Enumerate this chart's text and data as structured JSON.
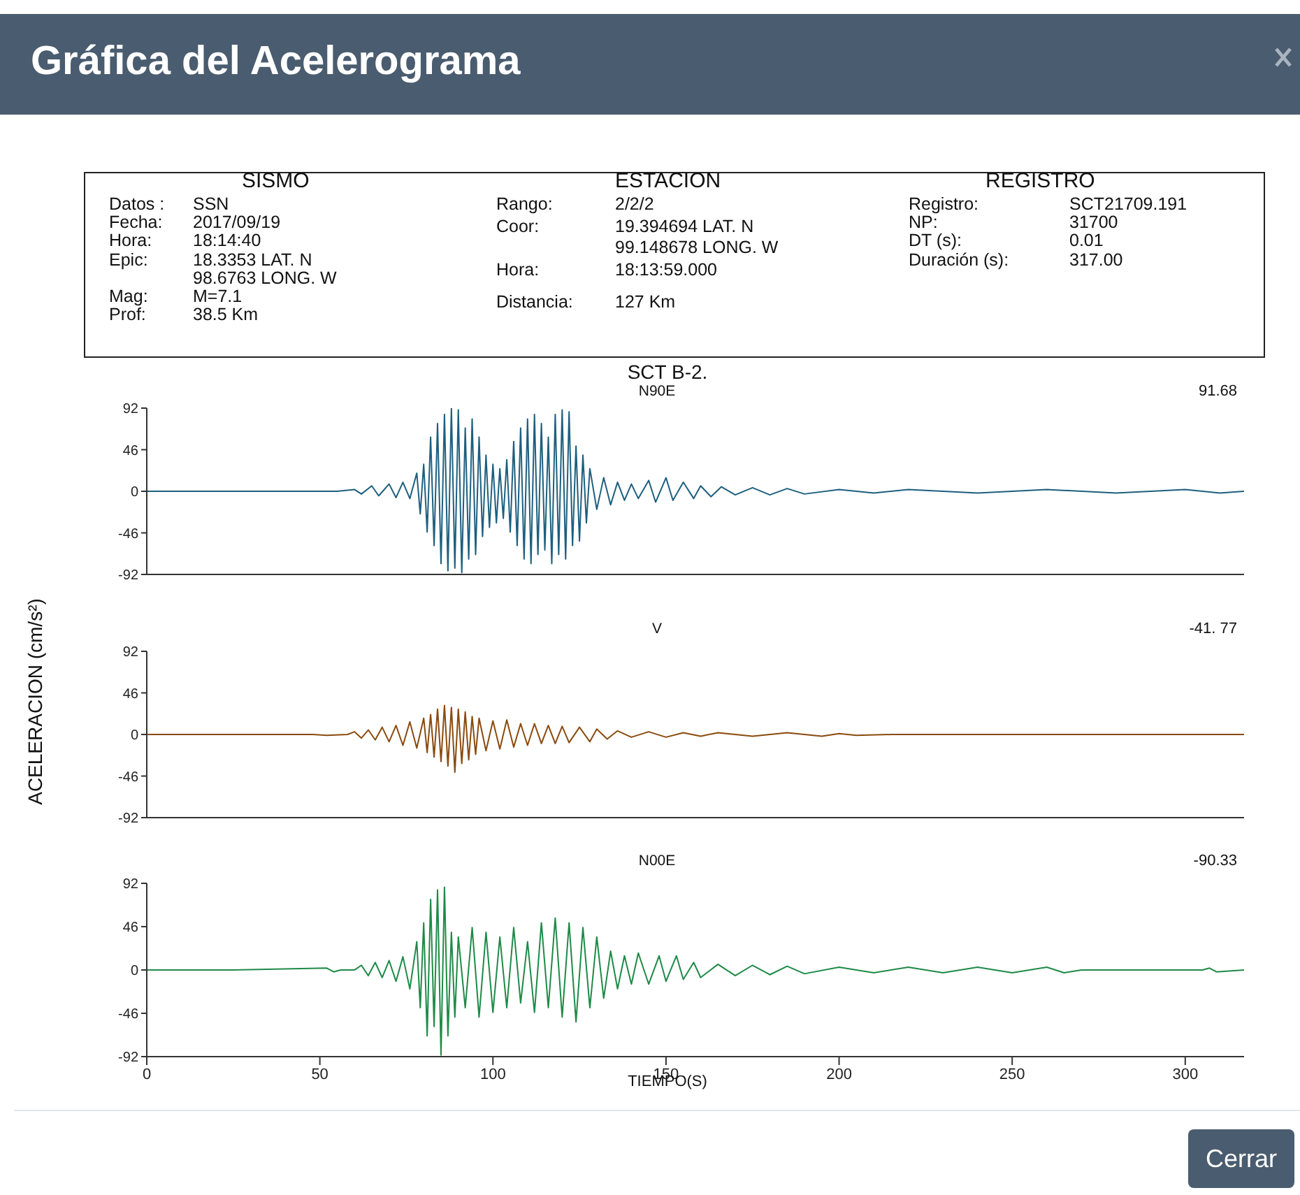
{
  "chart_data": [
    {
      "type": "other",
      "title": "Gráfica del Acelerograma",
      "annotations": [
        "SISMO",
        "Datos :",
        "SSN",
        "Fecha:",
        "2017/09/19",
        "Hora:",
        "18:14:40",
        "Epic:",
        "18.3353  LAT. N",
        "98.6763  LONG. W",
        "Mag:",
        "M=7.1",
        "Prof:",
        "38.5 Km",
        "ESTACION",
        "Rango:",
        "2/2/2",
        "Coor:",
        "19.394694  LAT. N",
        "99.148678  LONG. W",
        "Hora:",
        "18:13:59.000",
        "Distancia:",
        "127 Km",
        "REGISTRO",
        "Registro:",
        "SCT21709.191",
        "NP:",
        "31700",
        "DT (s):",
        "0.01",
        "Duración (s):",
        "317.00",
        "Cerrar"
      ]
    },
    {
      "type": "line",
      "title": "SCT B-2.",
      "subtitle": "N90E",
      "annotations": [
        "91.68"
      ],
      "xlim": [
        0,
        317
      ],
      "ylim": [
        -92,
        92
      ],
      "yticks": [
        -92,
        -46,
        0,
        46,
        92
      ],
      "tick_labels": "y",
      "series": [
        {
          "color": "#1d5f7e",
          "x": [
            0,
            50,
            55,
            60,
            62,
            65,
            67,
            70,
            72,
            74,
            76,
            78,
            79,
            80,
            81,
            82,
            83,
            84,
            85,
            86,
            87,
            88,
            89,
            90,
            91,
            92,
            93,
            94,
            95,
            96,
            97,
            98,
            99,
            100,
            101,
            102,
            103,
            104,
            105,
            106,
            107,
            108,
            109,
            110,
            111,
            112,
            113,
            114,
            115,
            116,
            117,
            118,
            119,
            120,
            121,
            122,
            123,
            124,
            125,
            126,
            127,
            128,
            130,
            132,
            134,
            136,
            138,
            140,
            142,
            145,
            147,
            150,
            152,
            155,
            158,
            160,
            163,
            166,
            170,
            175,
            180,
            185,
            190,
            200,
            210,
            220,
            240,
            260,
            280,
            300,
            310,
            317
          ],
          "values": [
            0,
            0,
            0,
            2,
            -3,
            6,
            -5,
            8,
            -7,
            10,
            -8,
            20,
            -25,
            30,
            -45,
            60,
            -60,
            75,
            -80,
            85,
            -88,
            91.68,
            -85,
            90,
            -90,
            70,
            -75,
            80,
            -70,
            60,
            -50,
            40,
            -40,
            30,
            -35,
            25,
            -30,
            35,
            -45,
            55,
            -60,
            70,
            -75,
            80,
            -80,
            85,
            -70,
            75,
            -65,
            60,
            -80,
            85,
            -70,
            90,
            -75,
            88,
            -60,
            50,
            -55,
            40,
            -35,
            25,
            -20,
            15,
            -15,
            10,
            -10,
            8,
            -8,
            12,
            -12,
            15,
            -10,
            10,
            -8,
            6,
            -6,
            5,
            -4,
            4,
            -4,
            3,
            -3,
            2,
            -2,
            2,
            -2,
            2,
            -2,
            2,
            -2,
            0
          ]
        }
      ]
    },
    {
      "type": "line",
      "subtitle": "V",
      "ylabel": "ACELERACION (cm/s²)",
      "annotations": [
        "-41. 77"
      ],
      "xlim": [
        0,
        317
      ],
      "ylim": [
        -92,
        92
      ],
      "yticks": [
        -92,
        -46,
        0,
        46,
        92
      ],
      "tick_labels": "y",
      "series": [
        {
          "color": "#8a4a0e",
          "x": [
            0,
            48,
            52,
            58,
            60,
            62,
            64,
            66,
            68,
            70,
            72,
            74,
            76,
            78,
            80,
            81,
            82,
            83,
            84,
            85,
            86,
            87,
            88,
            89,
            90,
            91,
            92,
            93,
            94,
            95,
            96,
            98,
            100,
            102,
            104,
            106,
            108,
            110,
            112,
            114,
            116,
            118,
            120,
            122,
            125,
            128,
            130,
            133,
            136,
            140,
            145,
            150,
            155,
            160,
            165,
            175,
            185,
            195,
            200,
            205,
            215,
            317
          ],
          "values": [
            0,
            0,
            -1,
            0,
            3,
            -4,
            5,
            -6,
            8,
            -8,
            10,
            -12,
            14,
            -15,
            18,
            -20,
            22,
            -25,
            28,
            -30,
            32,
            -35,
            30,
            -41.77,
            28,
            -32,
            25,
            -28,
            20,
            -22,
            18,
            -18,
            15,
            -16,
            16,
            -14,
            12,
            -12,
            12,
            -10,
            10,
            -10,
            9,
            -9,
            8,
            -8,
            6,
            -5,
            4,
            -3,
            3,
            -3,
            2,
            -2,
            2,
            -2,
            2,
            -2,
            1,
            -1,
            0,
            0
          ]
        }
      ]
    },
    {
      "type": "line",
      "subtitle": "N00E",
      "xlabel": "TIEMPO(S)",
      "annotations": [
        "-90.33"
      ],
      "xlim": [
        0,
        317
      ],
      "xticks": [
        0,
        50,
        100,
        150,
        200,
        250,
        300
      ],
      "ylim": [
        -92,
        92
      ],
      "yticks": [
        -92,
        -46,
        0,
        46,
        92
      ],
      "series": [
        {
          "color": "#1e8a47",
          "x": [
            0,
            25,
            52,
            54,
            56,
            60,
            62,
            64,
            66,
            68,
            70,
            72,
            74,
            76,
            78,
            79,
            80,
            81,
            82,
            83,
            84,
            85,
            86,
            87,
            88,
            89,
            90,
            92,
            94,
            96,
            98,
            100,
            102,
            104,
            106,
            108,
            110,
            112,
            114,
            116,
            118,
            120,
            122,
            124,
            126,
            128,
            130,
            132,
            134,
            136,
            138,
            140,
            142,
            145,
            148,
            150,
            153,
            155,
            158,
            160,
            165,
            170,
            175,
            180,
            185,
            190,
            200,
            210,
            220,
            230,
            240,
            250,
            260,
            265,
            270,
            305,
            307,
            309,
            317
          ],
          "values": [
            0,
            0,
            2,
            -2,
            0,
            0,
            5,
            -6,
            8,
            -8,
            10,
            -12,
            14,
            -20,
            30,
            -40,
            50,
            -70,
            75,
            -60,
            85,
            -90.33,
            88,
            -70,
            40,
            -50,
            35,
            -40,
            45,
            -50,
            40,
            -45,
            35,
            -40,
            45,
            -35,
            30,
            -45,
            50,
            -40,
            55,
            -50,
            50,
            -55,
            45,
            -40,
            35,
            -30,
            20,
            -20,
            15,
            -15,
            18,
            -15,
            15,
            -12,
            15,
            -10,
            8,
            -8,
            6,
            -6,
            5,
            -5,
            4,
            -4,
            3,
            -3,
            3,
            -3,
            3,
            -3,
            3,
            -3,
            0,
            0,
            2,
            -2,
            0
          ]
        }
      ]
    }
  ]
}
